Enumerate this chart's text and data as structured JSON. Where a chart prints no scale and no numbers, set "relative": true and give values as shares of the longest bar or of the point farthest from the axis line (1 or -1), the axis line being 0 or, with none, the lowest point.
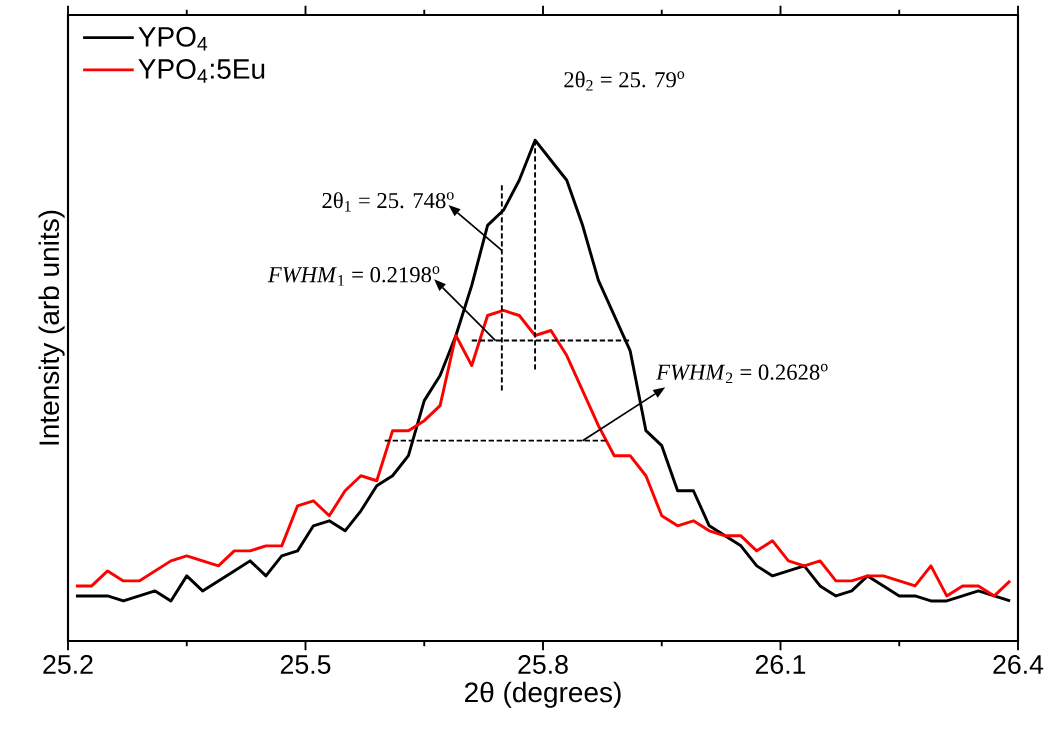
{
  "chart_data": {
    "type": "line",
    "relative": true,
    "xlabel": "2θ (degrees)",
    "ylabel": "Intensity (arb units)",
    "xlim": [
      25.2,
      26.4
    ],
    "xticks": [
      25.2,
      25.5,
      25.8,
      26.1,
      26.4
    ],
    "legend": "top left",
    "x": [
      25.21,
      25.23,
      25.25,
      25.27,
      25.29,
      25.31,
      25.33,
      25.35,
      25.37,
      25.39,
      25.41,
      25.43,
      25.45,
      25.47,
      25.49,
      25.51,
      25.53,
      25.55,
      25.57,
      25.59,
      25.61,
      25.63,
      25.65,
      25.67,
      25.69,
      25.71,
      25.73,
      25.75,
      25.77,
      25.79,
      25.81,
      25.83,
      25.85,
      25.87,
      25.89,
      25.91,
      25.93,
      25.95,
      25.97,
      25.99,
      26.01,
      26.03,
      26.05,
      26.07,
      26.09,
      26.11,
      26.13,
      26.15,
      26.17,
      26.19,
      26.21,
      26.23,
      26.25,
      26.27,
      26.29,
      26.31,
      26.33,
      26.35,
      26.37,
      26.39
    ],
    "series": [
      {
        "name": "YPO$_{4}$",
        "color": "#000000",
        "values": [
          0.09,
          0.09,
          0.09,
          0.08,
          0.09,
          0.1,
          0.08,
          0.13,
          0.1,
          0.12,
          0.14,
          0.16,
          0.13,
          0.17,
          0.18,
          0.23,
          0.24,
          0.22,
          0.26,
          0.31,
          0.33,
          0.37,
          0.48,
          0.53,
          0.61,
          0.71,
          0.83,
          0.86,
          0.92,
          1.0,
          0.96,
          0.92,
          0.83,
          0.72,
          0.65,
          0.58,
          0.42,
          0.39,
          0.3,
          0.3,
          0.23,
          0.21,
          0.19,
          0.15,
          0.13,
          0.14,
          0.15,
          0.11,
          0.09,
          0.1,
          0.13,
          0.11,
          0.09,
          0.09,
          0.08,
          0.08,
          0.09,
          0.1,
          0.09,
          0.08
        ]
      },
      {
        "name": "YPO$_{4}$:5Eu",
        "color": "#ff0000",
        "values": [
          0.11,
          0.11,
          0.14,
          0.12,
          0.12,
          0.14,
          0.16,
          0.17,
          0.16,
          0.15,
          0.18,
          0.18,
          0.19,
          0.19,
          0.27,
          0.28,
          0.25,
          0.3,
          0.33,
          0.32,
          0.42,
          0.42,
          0.44,
          0.47,
          0.61,
          0.55,
          0.65,
          0.66,
          0.65,
          0.61,
          0.62,
          0.57,
          0.5,
          0.43,
          0.37,
          0.37,
          0.33,
          0.25,
          0.23,
          0.24,
          0.22,
          0.21,
          0.21,
          0.18,
          0.2,
          0.16,
          0.15,
          0.16,
          0.12,
          0.12,
          0.13,
          0.13,
          0.12,
          0.11,
          0.15,
          0.09,
          0.11,
          0.11,
          0.09,
          0.12
        ]
      },
      {
        "x": [
          25.748,
          25.748
        ],
        "color": "#000000",
        "line_style": "dashed",
        "values": [
          0.91,
          0.5
        ]
      },
      {
        "x": [
          25.79,
          25.79
        ],
        "color": "#000000",
        "line_style": "dashed",
        "values": [
          1.0,
          0.54
        ]
      },
      {
        "x": [
          25.71,
          25.91
        ],
        "color": "#000000",
        "line_style": "dashed",
        "values": [
          0.6,
          0.6
        ]
      },
      {
        "x": [
          25.6,
          25.88
        ],
        "color": "#000000",
        "line_style": "dashed",
        "values": [
          0.4,
          0.4
        ]
      }
    ],
    "annotations": [
      {
        "text": "2θ$_{2}$ = 25. 79$^{o}$",
        "x": 25.79,
        "y": 1.0
      },
      {
        "text": "2θ$_{1}$ = 25. 748$^{o}$",
        "x": 25.748,
        "y": 0.78
      },
      {
        "text": "*FWHM*$_{1}$ = 0.2198$^{o}$",
        "x": 25.74,
        "y": 0.6
      },
      {
        "text": "*FWHM*$_{2}$ = 0.2628$^{o}$",
        "x": 25.85,
        "y": 0.4
      }
    ]
  }
}
